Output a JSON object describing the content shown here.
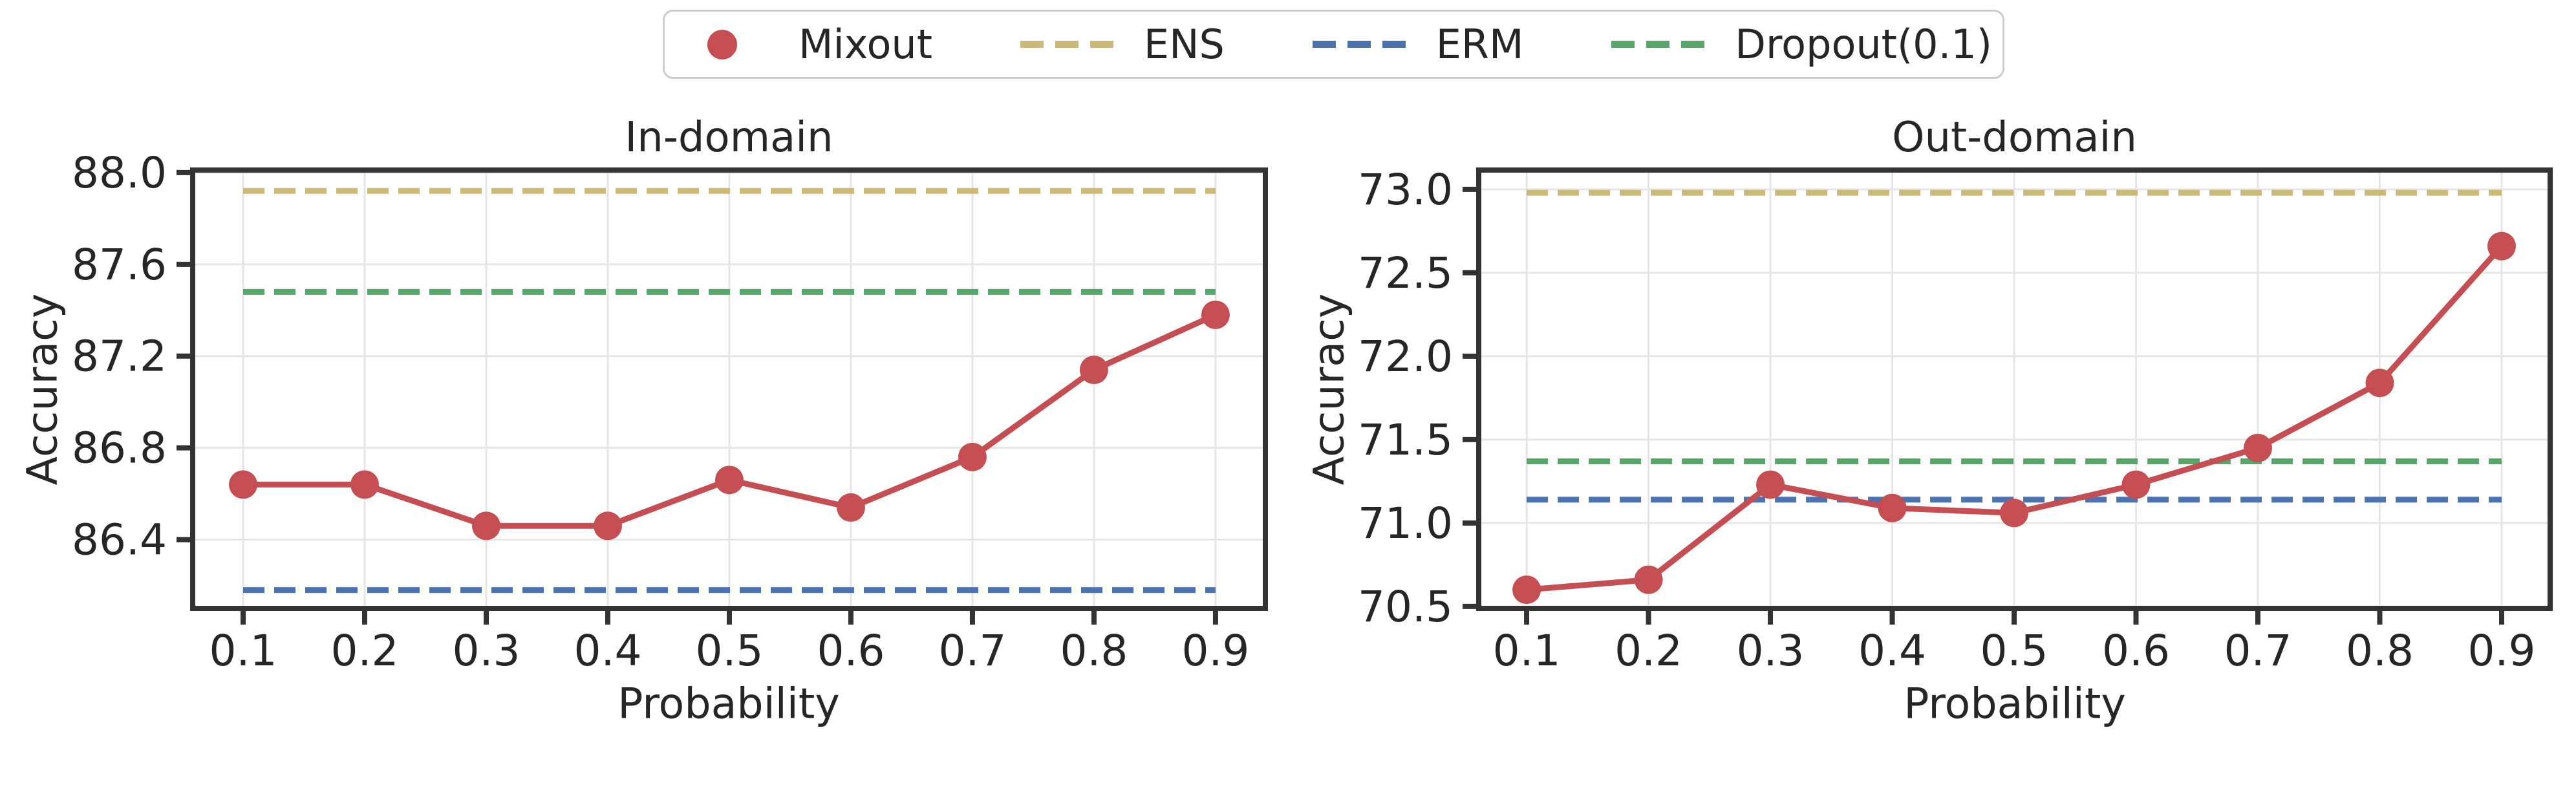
{
  "style": {
    "background": "#ffffff",
    "text_color": "#262626",
    "spine_color": "#333333",
    "grid_color": "#e6e6e6",
    "legend_border_color": "#cccccc",
    "mixout_color": "#c44e52",
    "ens_color": "#ccb974",
    "erm_color": "#4c72b0",
    "dropout_color": "#55a868"
  },
  "legend": {
    "items": [
      {
        "label": "Mixout",
        "type": "marker",
        "color": "#c44e52"
      },
      {
        "label": "ENS",
        "type": "dash",
        "color": "#ccb974"
      },
      {
        "label": "ERM",
        "type": "dash",
        "color": "#4c72b0"
      },
      {
        "label": "Dropout(0.1)",
        "type": "dash",
        "color": "#55a868"
      }
    ]
  },
  "chart_data": [
    {
      "type": "line",
      "title": "In-domain",
      "xlabel": "Probability",
      "ylabel": "Accuracy",
      "grid": true,
      "legend_position": "above figure, centered",
      "x": [
        0.1,
        0.2,
        0.3,
        0.4,
        0.5,
        0.6,
        0.7,
        0.8,
        0.9
      ],
      "xticklabels": [
        "0.1",
        "0.2",
        "0.3",
        "0.4",
        "0.5",
        "0.6",
        "0.7",
        "0.8",
        "0.9"
      ],
      "yticks": [
        88.0,
        87.6,
        87.2,
        86.8,
        86.4
      ],
      "yticklabels": [
        "88.0",
        "87.6",
        "87.2",
        "86.8",
        "86.4"
      ],
      "xlim": [
        0.0585,
        0.941
      ],
      "ylim": [
        86.1,
        88.011
      ],
      "series": [
        {
          "name": "Mixout",
          "color": "#c44e52",
          "marker": "circle",
          "values": [
            86.64,
            86.64,
            86.46,
            86.46,
            86.66,
            86.54,
            86.76,
            87.14,
            87.38
          ]
        }
      ],
      "hlines": [
        {
          "name": "ENS",
          "value": 87.92,
          "color": "#ccb974",
          "style": "dashed"
        },
        {
          "name": "ERM",
          "value": 86.18,
          "color": "#4c72b0",
          "style": "dashed"
        },
        {
          "name": "Dropout(0.1)",
          "value": 87.48,
          "color": "#55a868",
          "style": "dashed"
        }
      ]
    },
    {
      "type": "line",
      "title": "Out-domain",
      "xlabel": "Probability",
      "ylabel": "Accuracy",
      "grid": true,
      "legend_position": "above figure, centered",
      "x": [
        0.1,
        0.2,
        0.3,
        0.4,
        0.5,
        0.6,
        0.7,
        0.8,
        0.9
      ],
      "xticklabels": [
        "0.1",
        "0.2",
        "0.3",
        "0.4",
        "0.5",
        "0.6",
        "0.7",
        "0.8",
        "0.9"
      ],
      "yticks": [
        73.0,
        72.5,
        72.0,
        71.5,
        71.0,
        70.5
      ],
      "yticklabels": [
        "73.0",
        "72.5",
        "72.0",
        "71.5",
        "71.0",
        "70.5"
      ],
      "xlim": [
        0.0607,
        0.9398
      ],
      "ylim": [
        70.488,
        73.116
      ],
      "series": [
        {
          "name": "Mixout",
          "color": "#c44e52",
          "marker": "circle",
          "values": [
            70.6,
            70.66,
            71.23,
            71.09,
            71.06,
            71.23,
            71.45,
            71.84,
            72.66
          ]
        }
      ],
      "hlines": [
        {
          "name": "ENS",
          "value": 72.98,
          "color": "#ccb974",
          "style": "dashed"
        },
        {
          "name": "ERM",
          "value": 71.14,
          "color": "#4c72b0",
          "style": "dashed"
        },
        {
          "name": "Dropout(0.1)",
          "value": 71.37,
          "color": "#55a868",
          "style": "dashed"
        }
      ]
    }
  ]
}
